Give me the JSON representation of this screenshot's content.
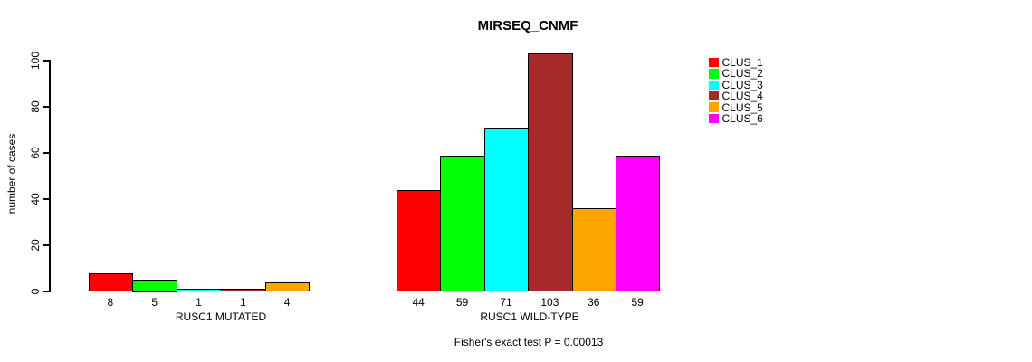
{
  "chart_data": {
    "type": "bar",
    "title": "MIRSEQ_CNMF",
    "ylabel": "number of cases",
    "ylim": [
      0,
      100
    ],
    "yticks": [
      0,
      20,
      40,
      60,
      80,
      100
    ],
    "grid": false,
    "legend_position": "right",
    "clusters": [
      {
        "name": "CLUS_1",
        "color": "#FF0000"
      },
      {
        "name": "CLUS_2",
        "color": "#00FF00"
      },
      {
        "name": "CLUS_3",
        "color": "#00FFFF"
      },
      {
        "name": "CLUS_4",
        "color": "#A52A2A"
      },
      {
        "name": "CLUS_5",
        "color": "#FFA500"
      },
      {
        "name": "CLUS_6",
        "color": "#FF00FF"
      }
    ],
    "groups": [
      {
        "label": "RUSC1 MUTATED",
        "values": [
          8,
          5,
          1,
          1,
          4,
          0
        ],
        "value_labels": [
          "8",
          "5",
          "1",
          "1",
          "4",
          ""
        ]
      },
      {
        "label": "RUSC1 WILD-TYPE",
        "values": [
          44,
          59,
          71,
          103,
          36,
          59
        ],
        "value_labels": [
          "44",
          "59",
          "71",
          "103",
          "36",
          "59"
        ]
      }
    ],
    "footnote": "Fisher's exact test P = 0.00013"
  },
  "colors": {
    "axis": "#000000",
    "background": "#FFFFFF",
    "text": "#000000"
  }
}
